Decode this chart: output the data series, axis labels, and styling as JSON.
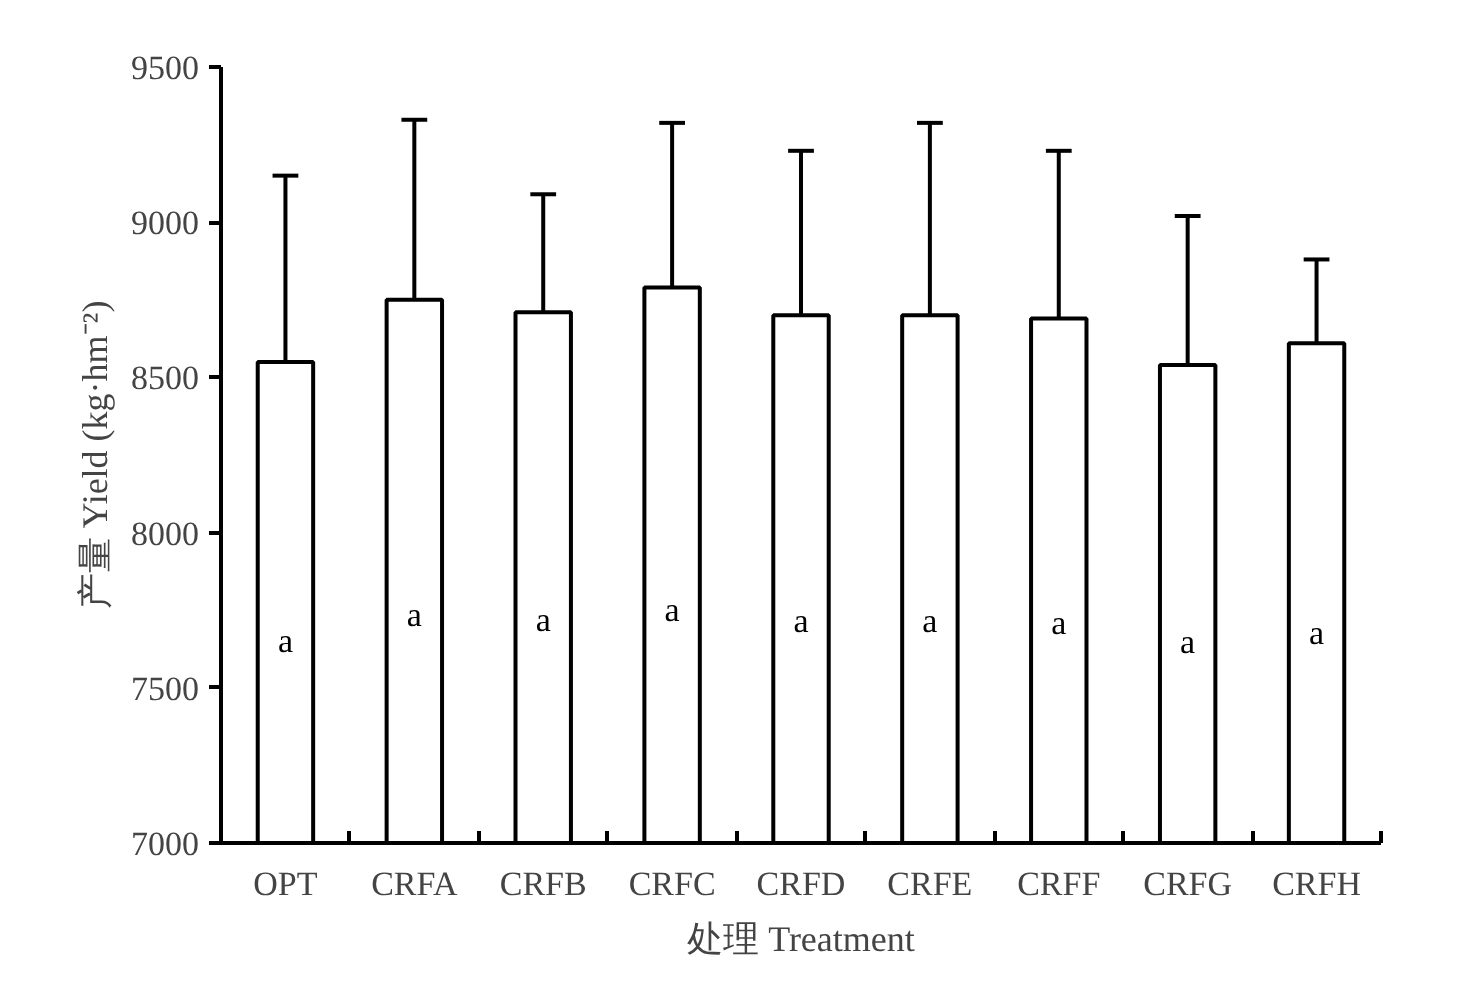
{
  "chart_data": {
    "type": "bar",
    "xlabel": "处理 Treatment",
    "ylabel": "产量 Yield (kg·hm⁻²)",
    "categories": [
      "OPT",
      "CRFA",
      "CRFB",
      "CRFC",
      "CRFD",
      "CRFE",
      "CRFF",
      "CRFG",
      "CRFH"
    ],
    "values": [
      8550,
      8750,
      8710,
      8790,
      8700,
      8700,
      8690,
      8540,
      8610
    ],
    "errors": [
      [
        8550,
        9150
      ],
      [
        8750,
        9330
      ],
      [
        8710,
        9090
      ],
      [
        8790,
        9320
      ],
      [
        8700,
        9230
      ],
      [
        8700,
        9320
      ],
      [
        8690,
        9230
      ],
      [
        8540,
        9020
      ],
      [
        8610,
        8880
      ]
    ],
    "color": "#ffffff",
    "ylim": [
      7000,
      9500
    ],
    "yticks": [
      7000,
      7500,
      8000,
      8500,
      9000,
      9500
    ],
    "grid": false,
    "annotations": [
      "a",
      "a",
      "a",
      "a",
      "a",
      "a",
      "a",
      "a",
      "a"
    ]
  }
}
